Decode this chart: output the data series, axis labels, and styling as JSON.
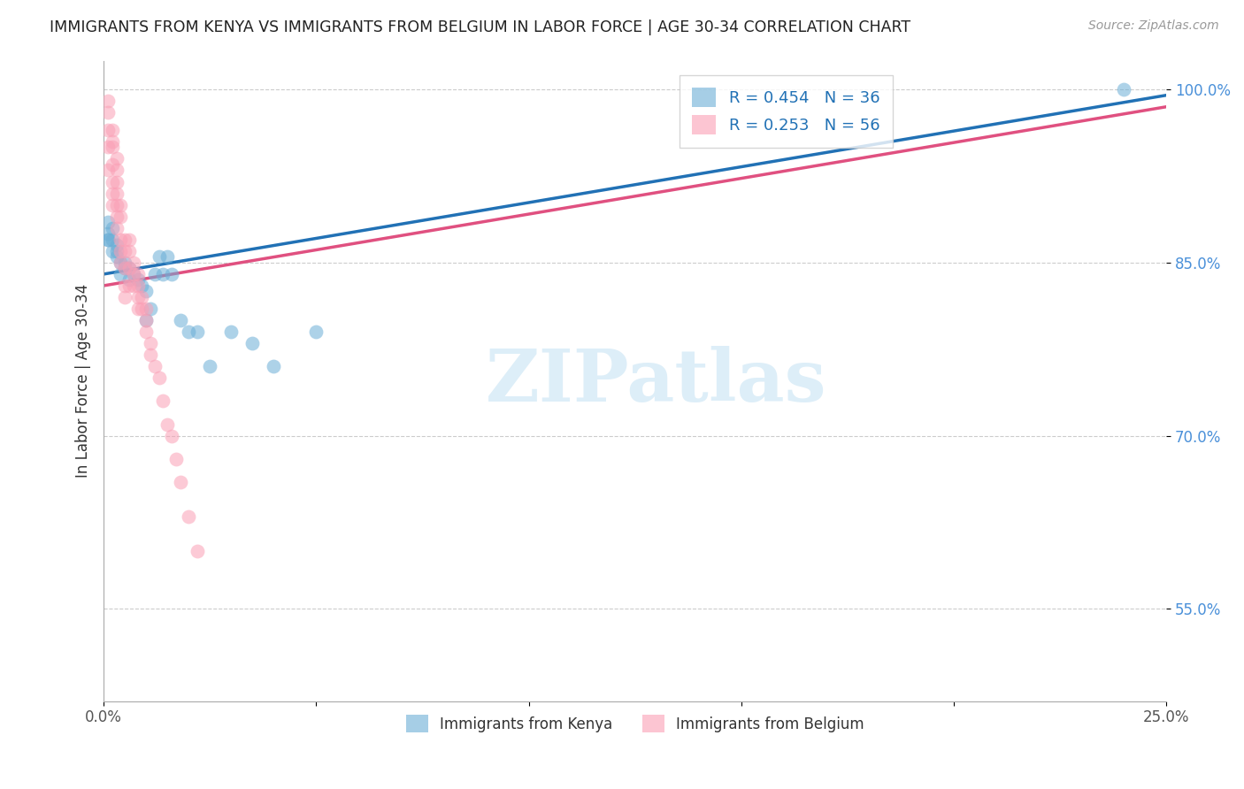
{
  "title": "IMMIGRANTS FROM KENYA VS IMMIGRANTS FROM BELGIUM IN LABOR FORCE | AGE 30-34 CORRELATION CHART",
  "source": "Source: ZipAtlas.com",
  "ylabel": "In Labor Force | Age 30-34",
  "xlim": [
    0.0,
    0.25
  ],
  "ylim": [
    0.47,
    1.025
  ],
  "xticks": [
    0.0,
    0.05,
    0.1,
    0.15,
    0.2,
    0.25
  ],
  "xticklabels": [
    "0.0%",
    "",
    "",
    "",
    "",
    "25.0%"
  ],
  "yticks": [
    0.55,
    0.7,
    0.85,
    1.0
  ],
  "yticklabels": [
    "55.0%",
    "70.0%",
    "85.0%",
    "100.0%"
  ],
  "kenya_R": 0.454,
  "kenya_N": 36,
  "belgium_R": 0.253,
  "belgium_N": 56,
  "kenya_color": "#6baed6",
  "belgium_color": "#fa9fb5",
  "kenya_line_color": "#2171b5",
  "belgium_line_color": "#e05080",
  "watermark": "ZIPatlas",
  "watermark_color": "#ddeef8",
  "kenya_x": [
    0.001,
    0.001,
    0.001,
    0.001,
    0.002,
    0.002,
    0.002,
    0.003,
    0.003,
    0.003,
    0.004,
    0.004,
    0.005,
    0.005,
    0.006,
    0.006,
    0.007,
    0.008,
    0.009,
    0.01,
    0.01,
    0.011,
    0.012,
    0.013,
    0.014,
    0.015,
    0.016,
    0.018,
    0.02,
    0.022,
    0.025,
    0.03,
    0.035,
    0.04,
    0.05,
    0.24
  ],
  "kenya_y": [
    0.885,
    0.87,
    0.87,
    0.875,
    0.88,
    0.87,
    0.86,
    0.855,
    0.865,
    0.86,
    0.85,
    0.84,
    0.845,
    0.85,
    0.835,
    0.845,
    0.84,
    0.835,
    0.83,
    0.825,
    0.8,
    0.81,
    0.84,
    0.855,
    0.84,
    0.855,
    0.84,
    0.8,
    0.79,
    0.79,
    0.76,
    0.79,
    0.78,
    0.76,
    0.79,
    1.0
  ],
  "belgium_x": [
    0.001,
    0.001,
    0.001,
    0.001,
    0.001,
    0.002,
    0.002,
    0.002,
    0.002,
    0.002,
    0.002,
    0.002,
    0.003,
    0.003,
    0.003,
    0.003,
    0.003,
    0.003,
    0.003,
    0.004,
    0.004,
    0.004,
    0.004,
    0.004,
    0.005,
    0.005,
    0.005,
    0.005,
    0.005,
    0.006,
    0.006,
    0.006,
    0.006,
    0.007,
    0.007,
    0.007,
    0.008,
    0.008,
    0.008,
    0.008,
    0.009,
    0.009,
    0.01,
    0.01,
    0.01,
    0.011,
    0.011,
    0.012,
    0.013,
    0.014,
    0.015,
    0.016,
    0.017,
    0.018,
    0.02,
    0.022
  ],
  "belgium_y": [
    0.99,
    0.98,
    0.965,
    0.95,
    0.93,
    0.965,
    0.955,
    0.95,
    0.935,
    0.92,
    0.91,
    0.9,
    0.94,
    0.93,
    0.92,
    0.91,
    0.9,
    0.89,
    0.88,
    0.9,
    0.89,
    0.87,
    0.86,
    0.85,
    0.87,
    0.86,
    0.845,
    0.83,
    0.82,
    0.87,
    0.86,
    0.845,
    0.83,
    0.85,
    0.84,
    0.83,
    0.84,
    0.83,
    0.82,
    0.81,
    0.82,
    0.81,
    0.81,
    0.8,
    0.79,
    0.78,
    0.77,
    0.76,
    0.75,
    0.73,
    0.71,
    0.7,
    0.68,
    0.66,
    0.63,
    0.6
  ],
  "kenya_line_x": [
    0.0,
    0.25
  ],
  "kenya_line_y": [
    0.84,
    0.995
  ],
  "belgium_line_x": [
    0.0,
    0.25
  ],
  "belgium_line_y": [
    0.83,
    0.985
  ]
}
